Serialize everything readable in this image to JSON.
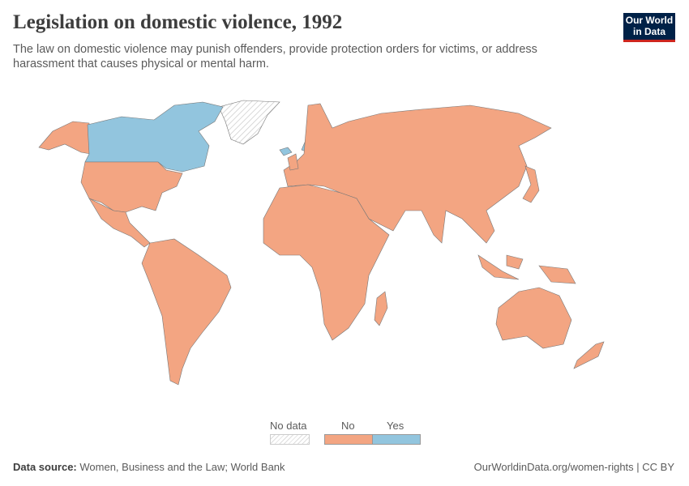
{
  "title": "Legislation on domestic violence, 1992",
  "subtitle": "The law on domestic violence may punish offenders, provide protection orders for victims, or address harassment that causes physical or mental harm.",
  "logo": {
    "line1": "Our World",
    "line2": "in Data"
  },
  "colors": {
    "no": "#f3a582",
    "yes": "#92c5de",
    "no_data": "hatched"
  },
  "legend": {
    "no_data": "No data",
    "no": "No",
    "yes": "Yes"
  },
  "map_values": {
    "Canada": "Yes",
    "Sweden": "Yes",
    "Iceland": "Yes",
    "Greenland": "No data",
    "United States": "No",
    "Russia": "No",
    "China": "No",
    "Brazil": "No",
    "Australia": "No",
    "India": "No"
  },
  "footer": {
    "source_label": "Data source:",
    "source": "Women, Business and the Law; World Bank",
    "url": "OurWorldinData.org/women-rights | CC BY"
  }
}
